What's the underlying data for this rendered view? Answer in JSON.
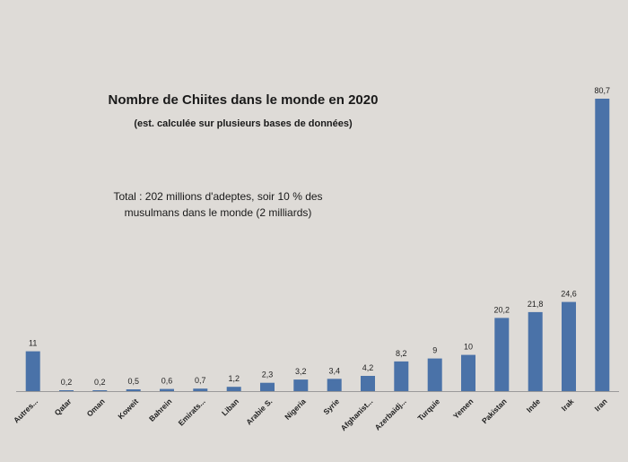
{
  "chart_data": {
    "type": "bar",
    "title": "Nombre de Chiites dans le monde en 2020",
    "subtitle": "(est. calculée sur plusieurs bases de données)",
    "annotation_lines": [
      "Total : 202 millions d'adeptes, soir 10 % des",
      "musulmans dans le monde (2 milliards)"
    ],
    "categories": [
      "Autres...",
      "Qatar",
      "Oman",
      "Koweit",
      "Bahrein",
      "Emirats...",
      "Liban",
      "Arabie S.",
      "Nigeria",
      "Syrie",
      "Afghanist...",
      "Azerbaidj...",
      "Turquie",
      "Yemen",
      "Pakistan",
      "Inde",
      "Irak",
      "Iran"
    ],
    "values": [
      11,
      0.2,
      0.2,
      0.5,
      0.6,
      0.7,
      1.2,
      2.3,
      3.2,
      3.4,
      4.2,
      8.2,
      9,
      10,
      20.2,
      21.8,
      24.6,
      80.7
    ],
    "value_labels": [
      "11",
      "0,2",
      "0,2",
      "0,5",
      "0,6",
      "0,7",
      "1,2",
      "2,3",
      "3,2",
      "3,4",
      "4,2",
      "8,2",
      "9",
      "10",
      "20,2",
      "21,8",
      "24,6",
      "80,7"
    ],
    "ylim": [
      0,
      100
    ],
    "bar_color": "#4a72a8",
    "background": "#dedbd7",
    "grid": false,
    "legend": false
  }
}
